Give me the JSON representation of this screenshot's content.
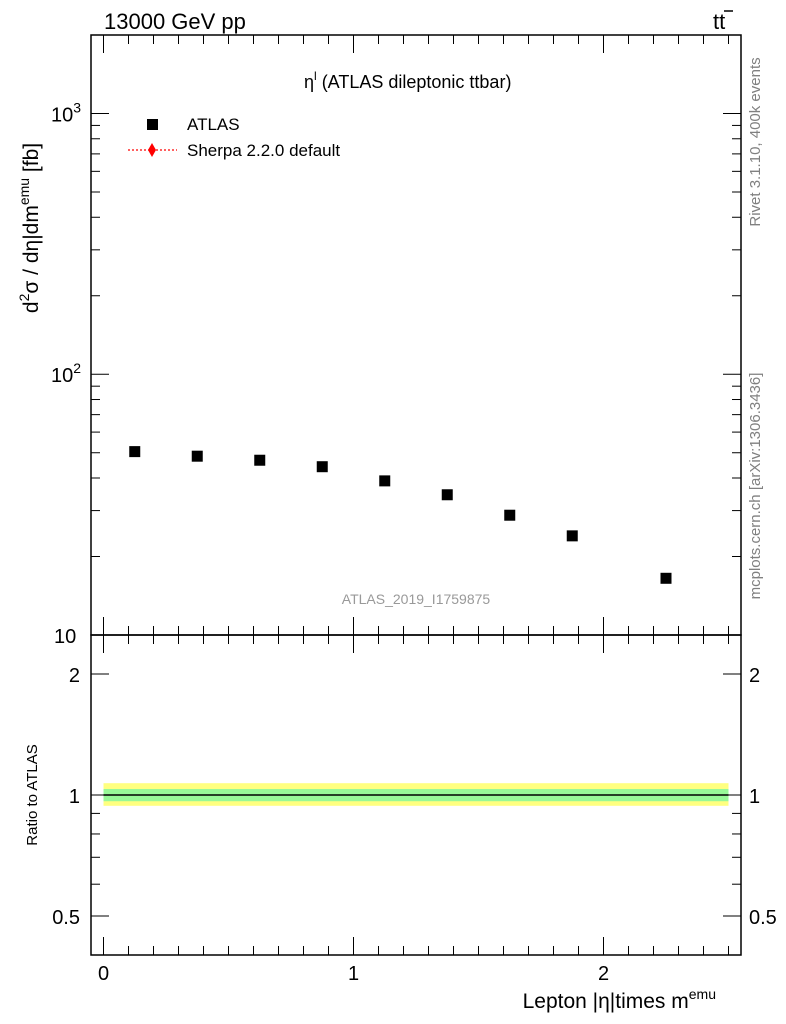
{
  "header": {
    "left": "13000 GeV pp",
    "right_base": "t",
    "right_bar": "t"
  },
  "side_labels": {
    "top": "Rivet 3.1.10,  400k events",
    "bottom": "mcplots.cern.ch [arXiv:1306.3436]"
  },
  "chart_data": [
    {
      "type": "scatter",
      "panel": "main",
      "title_sym": "η",
      "title_sup": "l",
      "title_rest": " (ATLAS dileptonic ttbar)",
      "ylabel": {
        "prefix": "d",
        "sup1": "2",
        "mid": "σ / dη|dm",
        "sup2": "emu",
        "suffix": " [fb]"
      },
      "yscale": "log",
      "ylim": [
        10,
        2000
      ],
      "xlim": [
        -0.05,
        2.55
      ],
      "yticks": [
        {
          "value": 10,
          "base": "10",
          "exp": ""
        },
        {
          "value": 100,
          "base": "10",
          "exp": "2"
        },
        {
          "value": 1000,
          "base": "10",
          "exp": "3"
        }
      ],
      "watermark": "ATLAS_2019_I1759875",
      "legend": {
        "position": "top-left",
        "entries": [
          {
            "name": "ATLAS",
            "marker": "square",
            "color": "#000000"
          },
          {
            "name": "Sherpa 2.2.0 default",
            "marker": "diamond",
            "color": "#ff0000"
          }
        ]
      },
      "series": [
        {
          "name": "ATLAS",
          "color": "#000000",
          "x": [
            0.125,
            0.375,
            0.625,
            0.875,
            1.125,
            1.375,
            1.625,
            1.875,
            2.25
          ],
          "y": [
            50.5,
            48.5,
            46.8,
            44.2,
            39.0,
            34.5,
            28.8,
            24.0,
            16.5
          ]
        }
      ]
    },
    {
      "type": "line",
      "panel": "ratio",
      "ylabel": "Ratio to ATLAS",
      "yscale": "log",
      "ylim": [
        0.4,
        2.5
      ],
      "xlim": [
        -0.05,
        2.55
      ],
      "xlabel": {
        "text": "Lepton |η|times m",
        "sup": "emu"
      },
      "xticks": [
        {
          "value": 0,
          "label": "0"
        },
        {
          "value": 1,
          "label": "1"
        },
        {
          "value": 2,
          "label": "2"
        }
      ],
      "yticks": [
        {
          "value": 0.5,
          "label": "0.5"
        },
        {
          "value": 1,
          "label": "1"
        },
        {
          "value": 2,
          "label": "2"
        }
      ],
      "bands": [
        {
          "name": "outer",
          "color": "#ffff80",
          "low": 0.94,
          "high": 1.07
        },
        {
          "name": "inner",
          "color": "#98f898",
          "low": 0.965,
          "high": 1.035
        }
      ],
      "reference": 1.0,
      "reference_x": [
        0.0,
        2.5
      ]
    }
  ]
}
